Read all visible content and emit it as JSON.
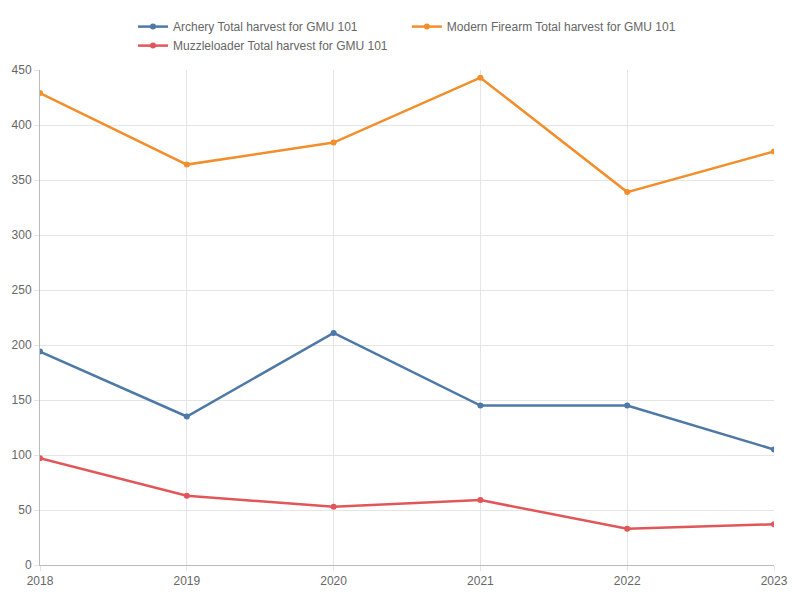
{
  "chart_data": {
    "type": "line",
    "x": [
      2018,
      2019,
      2020,
      2021,
      2022,
      2023
    ],
    "series": [
      {
        "name": "Archery Total harvest for GMU 101",
        "color": "#4e79a7",
        "values": [
          194,
          135,
          211,
          145,
          145,
          105
        ]
      },
      {
        "name": "Modern Firearm Total harvest for GMU 101",
        "color": "#f28e2b",
        "values": [
          429,
          364,
          384,
          443,
          339,
          376
        ]
      },
      {
        "name": "Muzzleloader Total harvest for GMU 101",
        "color": "#e15759",
        "values": [
          97,
          63,
          53,
          59,
          33,
          37
        ]
      }
    ],
    "xlim": [
      2018,
      2023
    ],
    "xticks": [
      2018,
      2019,
      2020,
      2021,
      2022,
      2023
    ],
    "ylim": [
      0,
      450
    ],
    "yticks": [
      0,
      50,
      100,
      150,
      200,
      250,
      300,
      350,
      400,
      450
    ],
    "grid": true,
    "legend": "top",
    "marker": "circle"
  }
}
